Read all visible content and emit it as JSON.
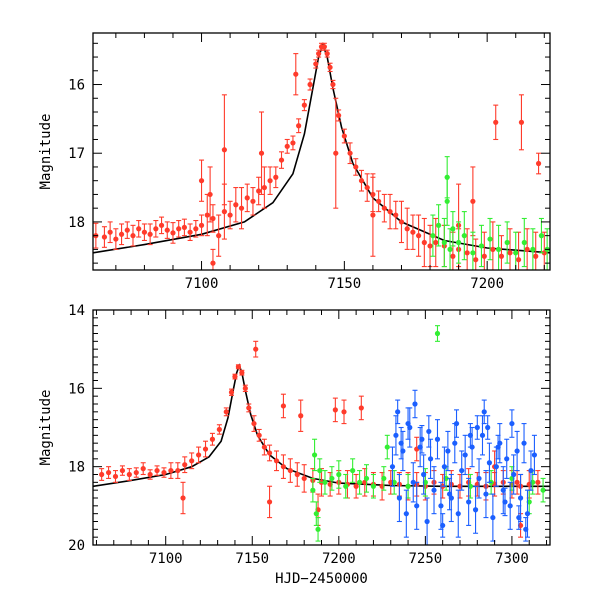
{
  "chart_data": [
    {
      "type": "scatter",
      "title": "",
      "xlabel": "",
      "ylabel": "Magnitude",
      "xlim": [
        7062,
        7222
      ],
      "ylim": [
        18.7,
        15.25
      ],
      "y_inverted": true,
      "xticks": [
        7100,
        7150,
        7200
      ],
      "yticks": [
        16,
        17,
        18
      ],
      "xtick_labels": [
        "7100",
        "7150",
        "7200"
      ],
      "ytick_labels": [
        "16",
        "17",
        "18"
      ],
      "colors": {
        "red": "#ff3b2b",
        "green": "#33ee33",
        "blue": "#1b5fff",
        "model": "#000000"
      },
      "model_curve": {
        "name": "model",
        "x": [
          7062,
          7080,
          7100,
          7115,
          7125,
          7132,
          7136,
          7139,
          7141,
          7142.5,
          7144,
          7146,
          7149,
          7153,
          7160,
          7170,
          7185,
          7200,
          7222
        ],
        "y": [
          18.45,
          18.33,
          18.18,
          18.0,
          17.72,
          17.3,
          16.72,
          16.05,
          15.6,
          15.42,
          15.6,
          16.05,
          16.62,
          17.15,
          17.65,
          18.0,
          18.27,
          18.38,
          18.45
        ]
      },
      "series": [
        {
          "name": "red",
          "color": "#ff3b2b",
          "x": [
            7063,
            7066,
            7068,
            7070,
            7072,
            7074,
            7076,
            7078,
            7080,
            7082,
            7084,
            7086,
            7088,
            7090,
            7092,
            7094,
            7096,
            7098,
            7100,
            7102,
            7104,
            7106,
            7108,
            7110,
            7112,
            7114,
            7116,
            7118,
            7120,
            7122,
            7124,
            7126,
            7128,
            7130,
            7132,
            7134,
            7136,
            7138,
            7140,
            7141,
            7142,
            7143,
            7144,
            7145,
            7146,
            7148,
            7150,
            7152,
            7154,
            7156,
            7158,
            7160,
            7162,
            7164,
            7166,
            7168,
            7170,
            7172,
            7174,
            7176,
            7178,
            7180,
            7182,
            7185,
            7188,
            7190,
            7193,
            7196,
            7199,
            7202,
            7205,
            7208,
            7211,
            7214,
            7217,
            7220,
            7100,
            7103,
            7133,
            7147,
            7160,
            7203,
            7212,
            7218,
            7190,
            7195,
            7108,
            7121,
            7104
          ],
          "y": [
            18.2,
            18.22,
            18.15,
            18.25,
            18.18,
            18.12,
            18.2,
            18.1,
            18.15,
            18.18,
            18.1,
            18.05,
            18.12,
            18.16,
            18.1,
            18.08,
            18.15,
            18.1,
            18.05,
            17.9,
            17.95,
            18.2,
            17.85,
            17.9,
            17.75,
            17.8,
            17.65,
            17.7,
            17.55,
            17.5,
            17.4,
            17.35,
            17.1,
            16.9,
            16.85,
            16.6,
            16.3,
            16.0,
            15.7,
            15.55,
            15.45,
            15.45,
            15.55,
            15.75,
            16.0,
            16.45,
            16.75,
            17.0,
            17.2,
            17.4,
            17.5,
            17.6,
            17.7,
            17.8,
            17.85,
            17.9,
            18.0,
            18.1,
            18.15,
            18.2,
            18.3,
            18.35,
            18.3,
            18.35,
            18.5,
            18.4,
            18.45,
            18.55,
            18.5,
            18.4,
            18.5,
            18.45,
            18.55,
            18.4,
            18.5,
            18.45,
            17.4,
            17.6,
            15.85,
            17.0,
            17.9,
            16.55,
            16.55,
            17.15,
            18.05,
            17.7,
            16.95,
            17.0,
            18.6
          ],
          "yerr": [
            0.18,
            0.15,
            0.15,
            0.15,
            0.15,
            0.12,
            0.15,
            0.12,
            0.12,
            0.15,
            0.12,
            0.12,
            0.12,
            0.15,
            0.12,
            0.12,
            0.12,
            0.12,
            0.15,
            0.3,
            0.2,
            0.3,
            0.4,
            0.2,
            0.25,
            0.3,
            0.2,
            0.2,
            0.2,
            0.3,
            0.2,
            0.15,
            0.12,
            0.1,
            0.1,
            0.1,
            0.08,
            0.08,
            0.06,
            0.05,
            0.05,
            0.05,
            0.05,
            0.06,
            0.06,
            0.08,
            0.1,
            0.15,
            0.12,
            0.15,
            0.2,
            0.25,
            0.15,
            0.2,
            0.25,
            0.2,
            0.3,
            0.3,
            0.25,
            0.3,
            0.35,
            0.3,
            0.35,
            0.3,
            0.35,
            0.3,
            0.35,
            0.3,
            0.35,
            0.4,
            0.3,
            0.35,
            0.4,
            0.3,
            0.35,
            0.3,
            0.3,
            0.4,
            0.3,
            0.8,
            0.6,
            0.25,
            0.4,
            0.15,
            0.6,
            0.5,
            0.8,
            0.6,
            0.2
          ]
        },
        {
          "name": "green",
          "color": "#33ee33",
          "x": [
            7181,
            7183,
            7185,
            7186,
            7187,
            7188,
            7190,
            7192,
            7195,
            7198,
            7201,
            7204,
            7207,
            7210,
            7213,
            7216,
            7219,
            7221,
            7186
          ],
          "y": [
            18.2,
            18.05,
            18.3,
            17.7,
            18.4,
            18.1,
            18.3,
            18.2,
            18.45,
            18.35,
            18.25,
            18.4,
            18.3,
            18.45,
            18.3,
            18.4,
            18.2,
            18.4,
            17.35
          ],
          "yerr": [
            0.3,
            0.3,
            0.35,
            0.35,
            0.3,
            0.25,
            0.3,
            0.35,
            0.3,
            0.3,
            0.3,
            0.35,
            0.3,
            0.3,
            0.35,
            0.3,
            0.25,
            0.3,
            0.3
          ]
        }
      ]
    },
    {
      "type": "scatter",
      "title": "",
      "xlabel": "HJD−2450000",
      "ylabel": "Magnitude",
      "xlim": [
        7058,
        7322
      ],
      "ylim": [
        20,
        14
      ],
      "y_inverted": true,
      "xticks": [
        7100,
        7150,
        7200,
        7250,
        7300
      ],
      "yticks": [
        14,
        16,
        18,
        20
      ],
      "xtick_labels": [
        "7100",
        "7150",
        "7200",
        "7250",
        "7300"
      ],
      "ytick_labels": [
        "14",
        "16",
        "18",
        "20"
      ],
      "model_curve": {
        "name": "model",
        "x": [
          7058,
          7080,
          7100,
          7115,
          7125,
          7132,
          7136,
          7139,
          7141,
          7142.5,
          7144,
          7146,
          7149,
          7153,
          7160,
          7170,
          7185,
          7200,
          7230,
          7260,
          7290,
          7322
        ],
        "y": [
          18.5,
          18.35,
          18.2,
          18.0,
          17.75,
          17.35,
          16.75,
          16.05,
          15.6,
          15.42,
          15.6,
          16.05,
          16.65,
          17.2,
          17.7,
          18.05,
          18.3,
          18.42,
          18.48,
          18.5,
          18.5,
          18.5
        ]
      },
      "series": [
        {
          "name": "red",
          "color": "#ff3b2b",
          "x": [
            7063,
            7067,
            7071,
            7075,
            7079,
            7083,
            7087,
            7091,
            7095,
            7099,
            7103,
            7107,
            7111,
            7115,
            7119,
            7123,
            7127,
            7131,
            7135,
            7138,
            7140,
            7142,
            7144,
            7146,
            7148,
            7151,
            7154,
            7157,
            7160,
            7164,
            7168,
            7172,
            7176,
            7180,
            7185,
            7190,
            7195,
            7200,
            7205,
            7210,
            7215,
            7220,
            7225,
            7230,
            7235,
            7240,
            7245,
            7250,
            7255,
            7260,
            7265,
            7270,
            7275,
            7280,
            7285,
            7290,
            7295,
            7300,
            7305,
            7310,
            7315,
            7152,
            7168,
            7178,
            7198,
            7203,
            7213,
            7245,
            7290,
            7303,
            7188,
            7110,
            7160,
            7305
          ],
          "y": [
            18.2,
            18.15,
            18.25,
            18.1,
            18.2,
            18.15,
            18.05,
            18.2,
            18.1,
            18.15,
            18.1,
            18.1,
            17.95,
            17.85,
            17.7,
            17.55,
            17.3,
            17.05,
            16.6,
            16.1,
            15.7,
            15.45,
            15.6,
            16.0,
            16.5,
            16.9,
            17.2,
            17.5,
            17.65,
            17.85,
            18.0,
            18.1,
            18.2,
            18.3,
            18.35,
            18.4,
            18.45,
            18.4,
            18.45,
            18.5,
            18.4,
            18.45,
            18.5,
            18.4,
            18.45,
            18.5,
            18.45,
            18.5,
            18.4,
            18.5,
            18.45,
            18.5,
            18.4,
            18.45,
            18.5,
            18.45,
            18.4,
            18.45,
            18.5,
            18.45,
            18.4,
            15.0,
            16.45,
            16.7,
            16.55,
            16.6,
            16.5,
            17.55,
            18.0,
            18.4,
            19.1,
            18.8,
            18.9,
            19.5
          ],
          "yerr": [
            0.15,
            0.15,
            0.15,
            0.12,
            0.15,
            0.12,
            0.15,
            0.12,
            0.12,
            0.12,
            0.2,
            0.2,
            0.2,
            0.2,
            0.2,
            0.2,
            0.15,
            0.12,
            0.1,
            0.08,
            0.06,
            0.05,
            0.06,
            0.08,
            0.1,
            0.2,
            0.15,
            0.2,
            0.2,
            0.25,
            0.3,
            0.3,
            0.3,
            0.35,
            0.3,
            0.35,
            0.3,
            0.3,
            0.35,
            0.3,
            0.35,
            0.3,
            0.35,
            0.3,
            0.3,
            0.35,
            0.3,
            0.35,
            0.3,
            0.3,
            0.35,
            0.3,
            0.35,
            0.3,
            0.35,
            0.3,
            0.3,
            0.35,
            0.3,
            0.35,
            0.3,
            0.2,
            0.3,
            0.4,
            0.3,
            0.3,
            0.3,
            0.3,
            0.4,
            0.3,
            0.4,
            0.4,
            0.4,
            0.3
          ]
        },
        {
          "name": "green",
          "color": "#33ee33",
          "x": [
            7185,
            7187,
            7189,
            7192,
            7196,
            7200,
            7204,
            7208,
            7212,
            7216,
            7220,
            7226,
            7232,
            7240,
            7250,
            7262,
            7276,
            7288,
            7300,
            7312,
            7318,
            7257,
            7186,
            7188,
            7228,
            7310
          ],
          "y": [
            18.6,
            19.2,
            18.1,
            18.4,
            18.3,
            18.2,
            18.5,
            18.1,
            18.4,
            18.3,
            18.5,
            18.3,
            18.4,
            18.5,
            18.4,
            18.3,
            18.5,
            18.4,
            18.3,
            18.4,
            18.6,
            14.6,
            17.7,
            19.6,
            17.5,
            18.9
          ],
          "yerr": [
            0.3,
            0.3,
            0.3,
            0.3,
            0.3,
            0.35,
            0.3,
            0.3,
            0.3,
            0.35,
            0.3,
            0.3,
            0.3,
            0.3,
            0.35,
            0.3,
            0.3,
            0.3,
            0.3,
            0.3,
            0.3,
            0.2,
            0.4,
            0.3,
            0.3,
            0.3
          ]
        },
        {
          "name": "blue",
          "color": "#1b5fff",
          "x": [
            7231,
            7233,
            7235,
            7237,
            7239,
            7241,
            7243,
            7245,
            7247,
            7249,
            7251,
            7253,
            7255,
            7257,
            7259,
            7261,
            7263,
            7265,
            7267,
            7269,
            7271,
            7273,
            7275,
            7277,
            7279,
            7281,
            7283,
            7285,
            7287,
            7289,
            7291,
            7293,
            7295,
            7297,
            7299,
            7301,
            7303,
            7305,
            7307,
            7309,
            7311,
            7313,
            7236,
            7244,
            7252,
            7260,
            7268,
            7276,
            7284,
            7292,
            7300,
            7308,
            7240,
            7248,
            7264,
            7280,
            7296,
            7304,
            7234,
            7286
          ],
          "y": [
            18.0,
            17.2,
            18.8,
            17.6,
            19.2,
            17.0,
            18.4,
            19.0,
            17.5,
            18.2,
            19.4,
            17.8,
            18.6,
            17.3,
            19.0,
            18.0,
            17.6,
            18.8,
            17.4,
            19.2,
            18.1,
            17.7,
            18.9,
            17.5,
            19.1,
            18.3,
            17.2,
            18.7,
            17.9,
            19.3,
            18.0,
            17.4,
            18.6,
            17.8,
            19.0,
            18.2,
            17.6,
            18.8,
            17.4,
            19.2,
            18.1,
            17.7,
            17.4,
            16.4,
            17.1,
            19.5,
            16.9,
            17.2,
            16.6,
            17.5,
            16.9,
            19.6,
            16.9,
            17.3,
            18.7,
            17.0,
            18.9,
            19.3,
            16.6,
            17.0
          ],
          "yerr": [
            0.5,
            0.5,
            0.6,
            0.5,
            0.6,
            0.5,
            0.5,
            0.6,
            0.5,
            0.5,
            0.6,
            0.5,
            0.6,
            0.5,
            0.6,
            0.5,
            0.5,
            0.6,
            0.5,
            0.6,
            0.5,
            0.5,
            0.6,
            0.5,
            0.6,
            0.5,
            0.5,
            0.6,
            0.5,
            0.6,
            0.5,
            0.5,
            0.6,
            0.5,
            0.6,
            0.5,
            0.5,
            0.6,
            0.5,
            0.6,
            0.5,
            0.5,
            0.4,
            0.35,
            0.4,
            0.3,
            0.35,
            0.3,
            0.3,
            0.3,
            0.35,
            0.3,
            0.4,
            0.35,
            0.4,
            0.3,
            0.35,
            0.3,
            0.3,
            0.3
          ]
        }
      ]
    }
  ]
}
